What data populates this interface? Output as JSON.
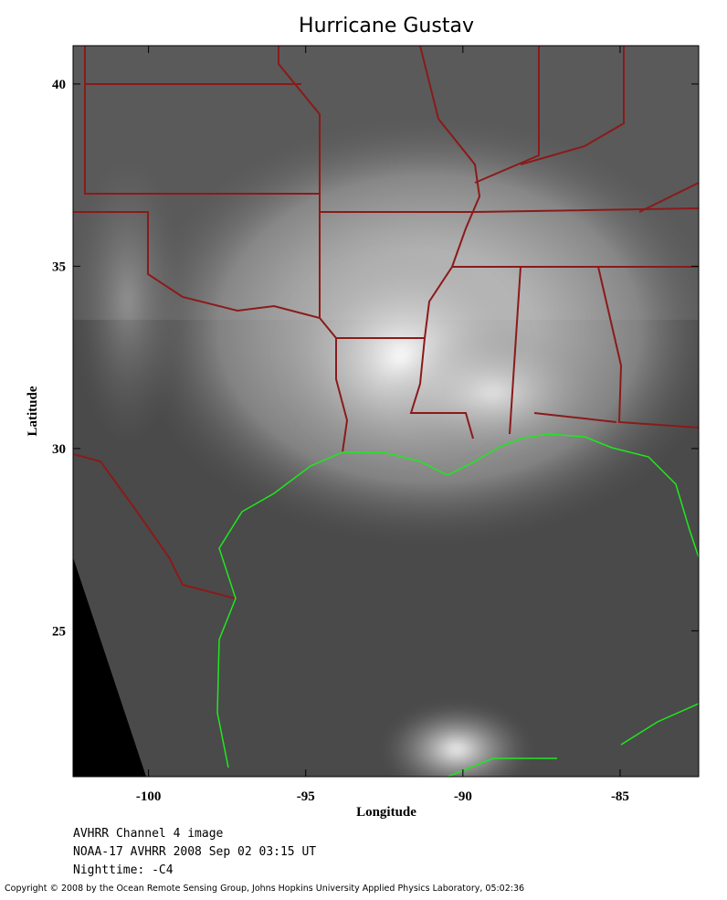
{
  "chart_data": {
    "type": "map",
    "title": "Hurricane Gustav",
    "xlabel": "Longitude",
    "ylabel": "Latitude",
    "xlim": [
      -102.4,
      -82.5
    ],
    "ylim": [
      21,
      41.05
    ],
    "xticks": [
      -100,
      -95,
      -90,
      -85
    ],
    "yticks": [
      25,
      30,
      35,
      40
    ],
    "caption": [
      "AVHRR Channel 4 image",
      "NOAA-17 AVHRR 2008 Sep 02 03:15 UT",
      "Nighttime: -C4"
    ],
    "copyright": "Copyright © 2008 by the Ocean Remote Sensing Group, Johns Hopkins University Applied Physics Laboratory, 05:02:36"
  }
}
